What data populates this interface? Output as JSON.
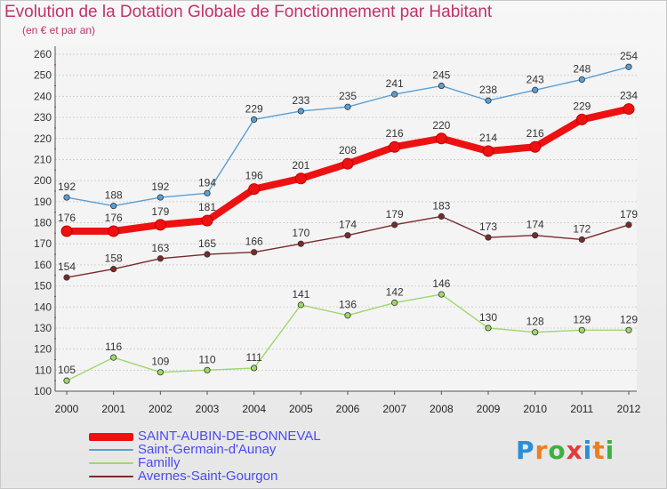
{
  "title": "Evolution de la Dotation Globale de Fonctionnement par Habitant",
  "subtitle": "(en € et par an)",
  "brand": {
    "text": "Proxiti",
    "letters": [
      "P",
      "r",
      "o",
      "x",
      "i",
      "t",
      "i"
    ],
    "colors": [
      "#2b8fd6",
      "#f07d1e",
      "#3fb03f",
      "#e33b3b",
      "#2b8fd6",
      "#f07d1e",
      "#3fb03f"
    ]
  },
  "chart_data": {
    "type": "line",
    "x": [
      2000,
      2001,
      2002,
      2003,
      2004,
      2005,
      2006,
      2007,
      2008,
      2009,
      2010,
      2011,
      2012
    ],
    "ylim": [
      100,
      260
    ],
    "yticks": [
      100,
      110,
      120,
      130,
      140,
      150,
      160,
      170,
      180,
      190,
      200,
      210,
      220,
      230,
      240,
      250,
      260
    ],
    "grid": "horizontal",
    "legend_position": "bottom",
    "series": [
      {
        "name": "SAINT-AUBIN-DE-BONNEVAL",
        "color": "#ee1111",
        "bold": true,
        "values": [
          176,
          176,
          179,
          181,
          196,
          201,
          208,
          216,
          220,
          214,
          216,
          229,
          234
        ]
      },
      {
        "name": "Saint-Germain-d'Aunay",
        "color": "#5a9fd4",
        "bold": false,
        "values": [
          192,
          188,
          192,
          194,
          229,
          233,
          235,
          241,
          245,
          238,
          243,
          248,
          254
        ]
      },
      {
        "name": "Familly",
        "color": "#9ed86a",
        "bold": false,
        "values": [
          105,
          116,
          109,
          110,
          111,
          141,
          136,
          142,
          146,
          130,
          128,
          129,
          129
        ]
      },
      {
        "name": "Avernes-Saint-Gourgon",
        "color": "#7a2a2a",
        "bold": false,
        "values": [
          154,
          158,
          163,
          165,
          166,
          170,
          174,
          179,
          183,
          173,
          174,
          172,
          179
        ]
      }
    ]
  }
}
